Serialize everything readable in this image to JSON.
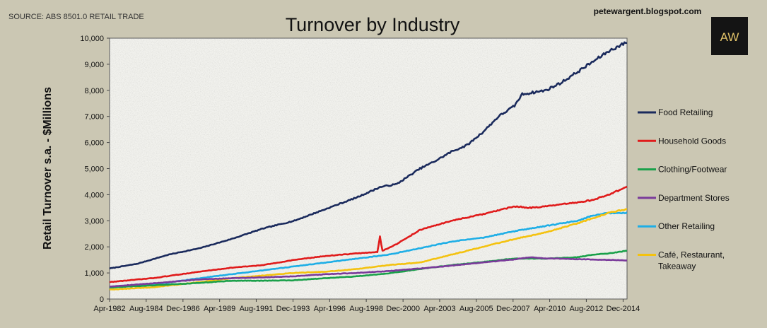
{
  "source_note": "SOURCE: ABS 8501.0 RETAIL TRADE",
  "website": "petewargent.blogspot.com",
  "logo_text": "AW",
  "colors": {
    "background": "#cbc7b3",
    "plot_bg": "#f2f2ee",
    "logo_bg": "#141414",
    "logo_text": "#e4c56a"
  },
  "chart_data": {
    "type": "line",
    "title": "Turnover by Industry",
    "ylabel": "Retail Turnover s.a. - $Millions",
    "xlabel": "",
    "ylim": [
      0,
      10000
    ],
    "yticks": [
      0,
      1000,
      2000,
      3000,
      4000,
      5000,
      6000,
      7000,
      8000,
      9000,
      10000
    ],
    "ytick_labels": [
      "0",
      "1,000",
      "2,000",
      "3,000",
      "4,000",
      "5,000",
      "6,000",
      "7,000",
      "8,000",
      "9,000",
      "10,000"
    ],
    "xlim": [
      1982.25,
      2015.17
    ],
    "xticks": [
      1982.25,
      1984.58,
      1986.92,
      1989.25,
      1991.58,
      1993.92,
      1996.25,
      1998.58,
      2000.92,
      2003.25,
      2005.58,
      2007.92,
      2010.25,
      2012.58,
      2014.92
    ],
    "xtick_labels": [
      "Apr-1982",
      "Aug-1984",
      "Dec-1986",
      "Apr-1989",
      "Aug-1991",
      "Dec-1993",
      "Apr-1996",
      "Aug-1998",
      "Dec-2000",
      "Apr-2003",
      "Aug-2005",
      "Dec-2007",
      "Apr-2010",
      "Aug-2012",
      "Dec-2014"
    ],
    "grid": false,
    "legend": "right",
    "series": [
      {
        "name": "Food Retailing",
        "color": "#1a2a5c",
        "x": [
          1982.25,
          1984,
          1986,
          1988,
          1990,
          1992,
          1994,
          1996,
          1998,
          1999.5,
          2000.5,
          2002,
          2003,
          2004,
          2005,
          2006,
          2007,
          2008,
          2008.5,
          2009,
          2010,
          2011,
          2012,
          2013,
          2014,
          2015.17
        ],
        "y": [
          1170,
          1350,
          1700,
          1950,
          2300,
          2700,
          3000,
          3450,
          3900,
          4300,
          4400,
          5000,
          5300,
          5650,
          5900,
          6400,
          7000,
          7400,
          7850,
          7900,
          8000,
          8300,
          8700,
          9100,
          9500,
          9850
        ]
      },
      {
        "name": "Household Goods",
        "color": "#e01b1b",
        "x": [
          1982.25,
          1985,
          1988,
          1990,
          1992,
          1994,
          1996,
          1998,
          1999.3,
          1999.45,
          1999.6,
          2000.5,
          2002,
          2004,
          2006,
          2008,
          2009,
          2010,
          2012,
          2013,
          2014,
          2015.17
        ],
        "y": [
          650,
          800,
          1050,
          1200,
          1300,
          1500,
          1650,
          1750,
          1800,
          2400,
          1850,
          2100,
          2650,
          3000,
          3250,
          3550,
          3500,
          3550,
          3700,
          3800,
          4000,
          4300
        ]
      },
      {
        "name": "Clothing/Footwear",
        "color": "#1aa04a",
        "x": [
          1982.25,
          1985,
          1988,
          1990,
          1992,
          1994,
          1996,
          1998,
          2000,
          2002,
          2004,
          2006,
          2008,
          2010,
          2012,
          2013,
          2014,
          2015.17
        ],
        "y": [
          450,
          520,
          620,
          700,
          700,
          720,
          800,
          870,
          980,
          1150,
          1300,
          1420,
          1550,
          1550,
          1600,
          1700,
          1750,
          1850
        ]
      },
      {
        "name": "Department Stores",
        "color": "#7a3a9a",
        "x": [
          1982.25,
          1985,
          1988,
          1990,
          1992,
          1994,
          1996,
          1998,
          2000,
          2002,
          2004,
          2006,
          2008,
          2009,
          2010,
          2012,
          2014,
          2015.17
        ],
        "y": [
          480,
          600,
          750,
          800,
          830,
          870,
          950,
          1000,
          1070,
          1170,
          1280,
          1400,
          1520,
          1600,
          1560,
          1530,
          1500,
          1480
        ]
      },
      {
        "name": "Other Retailing",
        "color": "#1eaee6",
        "x": [
          1982.25,
          1985,
          1988,
          1990,
          1992,
          1994,
          1996,
          1998,
          2000,
          2002,
          2004,
          2006,
          2008,
          2010,
          2012,
          2013,
          2014,
          2015.17
        ],
        "y": [
          430,
          550,
          800,
          950,
          1100,
          1250,
          1400,
          1550,
          1700,
          1950,
          2200,
          2350,
          2600,
          2800,
          3000,
          3200,
          3300,
          3300
        ]
      },
      {
        "name": "Café, Restaurant, Takeaway",
        "color": "#f4c20f",
        "x": [
          1982.25,
          1985,
          1988,
          1990,
          1992,
          1994,
          1996,
          1998,
          2000,
          2001,
          2002,
          2004,
          2006,
          2008,
          2010,
          2012,
          2013,
          2014,
          2015.17
        ],
        "y": [
          360,
          450,
          650,
          800,
          900,
          1000,
          1050,
          1150,
          1300,
          1350,
          1400,
          1700,
          2000,
          2300,
          2550,
          2900,
          3100,
          3300,
          3450
        ]
      }
    ]
  }
}
